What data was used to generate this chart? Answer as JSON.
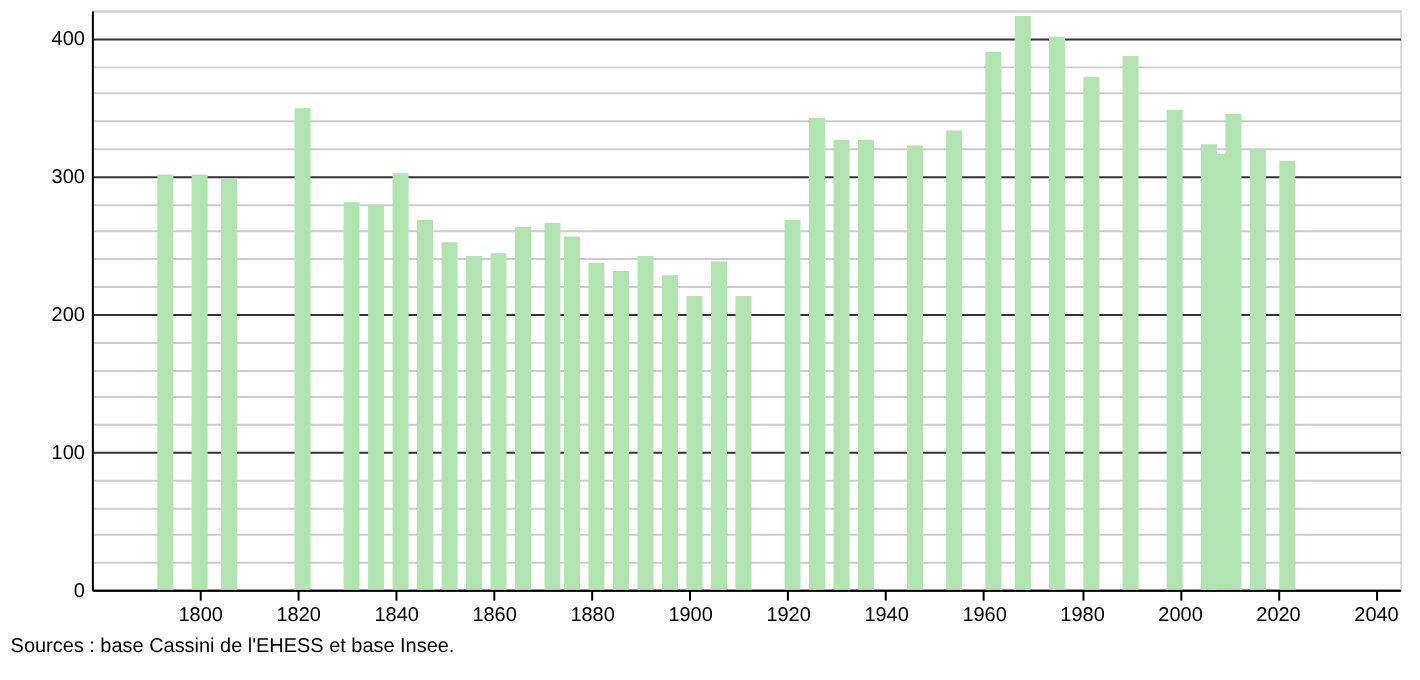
{
  "chart_data": {
    "type": "bar",
    "x": [
      1793,
      1800,
      1806,
      1821,
      1831,
      1836,
      1841,
      1846,
      1851,
      1856,
      1861,
      1866,
      1872,
      1876,
      1881,
      1886,
      1891,
      1896,
      1901,
      1906,
      1911,
      1921,
      1926,
      1931,
      1936,
      1946,
      1954,
      1962,
      1968,
      1975,
      1982,
      1990,
      1999,
      2006,
      2008,
      2011,
      2016,
      2021,
      2022
    ],
    "values": [
      301,
      301,
      298,
      349,
      281,
      279,
      302,
      268,
      252,
      242,
      244,
      263,
      266,
      256,
      237,
      231,
      242,
      228,
      213,
      238,
      213,
      268,
      342,
      326,
      326,
      322,
      333,
      390,
      416,
      401,
      372,
      387,
      348,
      323,
      316,
      345,
      319,
      null,
      311
    ],
    "color": "#b1e4b1",
    "xlim": [
      1778,
      2045
    ],
    "xticks": [
      1800,
      1820,
      1840,
      1860,
      1880,
      1900,
      1920,
      1940,
      1960,
      1980,
      2000,
      2020,
      2040
    ],
    "ylim": [
      0,
      420
    ],
    "yticks": [
      0,
      {
        "value": 20,
        "label": null
      },
      {
        "value": 40,
        "label": null
      },
      {
        "value": 60,
        "label": null
      },
      {
        "value": 80,
        "label": null
      },
      100,
      {
        "value": 120,
        "label": null
      },
      {
        "value": 140,
        "label": null
      },
      {
        "value": 160,
        "label": null
      },
      {
        "value": 180,
        "label": null
      },
      200,
      {
        "value": 220,
        "label": null
      },
      {
        "value": 240,
        "label": null
      },
      {
        "value": 260,
        "label": null
      },
      {
        "value": 280,
        "label": null
      },
      300,
      {
        "value": 320,
        "label": null
      },
      {
        "value": 340,
        "label": null
      },
      {
        "value": 360,
        "label": null
      },
      {
        "value": 380,
        "label": null
      },
      400,
      {
        "value": 420,
        "label": null
      }
    ],
    "grid": "y",
    "annotations": [
      "Sources : base Cassini de l'EHESS et base Insee."
    ]
  }
}
